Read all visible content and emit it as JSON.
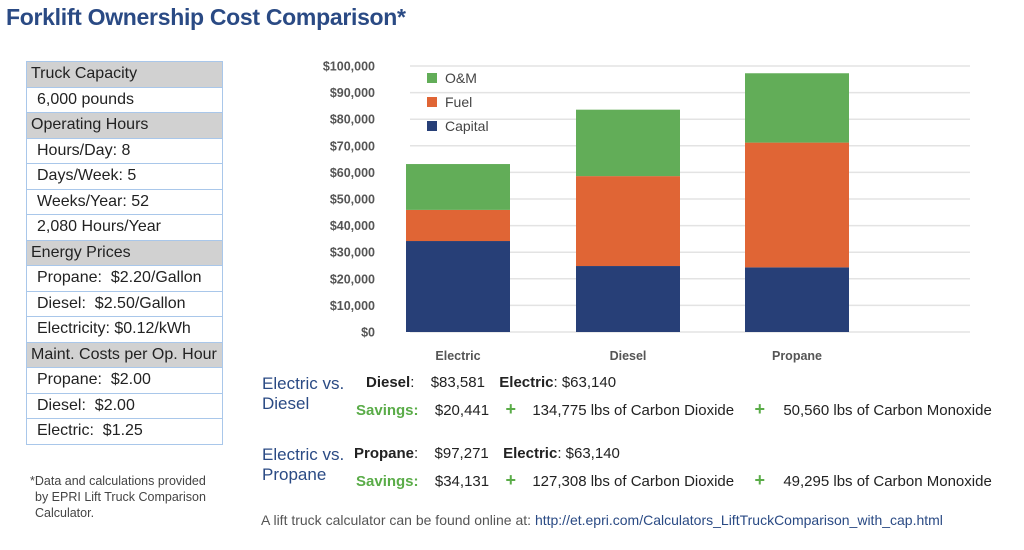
{
  "title": "Forklift Ownership Cost Comparison*",
  "specs": [
    {
      "type": "header",
      "text": "Truck Capacity"
    },
    {
      "type": "value",
      "text": "6,000 pounds"
    },
    {
      "type": "header",
      "text": "Operating Hours"
    },
    {
      "type": "value",
      "text": "Hours/Day: 8"
    },
    {
      "type": "value",
      "text": "Days/Week: 5"
    },
    {
      "type": "value",
      "text": "Weeks/Year: 52"
    },
    {
      "type": "value",
      "text": "2,080 Hours/Year"
    },
    {
      "type": "header",
      "text": "Energy Prices"
    },
    {
      "type": "value",
      "text": "Propane:  $2.20/Gallon"
    },
    {
      "type": "value",
      "text": "Diesel:  $2.50/Gallon"
    },
    {
      "type": "value",
      "text": "Electricity: $0.12/kWh"
    },
    {
      "type": "header",
      "text": "Maint. Costs per Op. Hour"
    },
    {
      "type": "value",
      "text": "Propane:  $2.00"
    },
    {
      "type": "value",
      "text": "Diesel:  $2.00"
    },
    {
      "type": "value",
      "text": "Electric:  $1.25"
    }
  ],
  "footnote": {
    "line1": "*Data and calculations provided",
    "line2": "by EPRI Lift Truck Comparison",
    "line3": "Calculator."
  },
  "chart_data": {
    "type": "bar",
    "stacked": true,
    "title": "",
    "xlabel": "",
    "ylabel": "",
    "categories": [
      "Electric",
      "Diesel",
      "Propane"
    ],
    "series": [
      {
        "name": "Capital",
        "color": "#273f77",
        "values": [
          34200,
          24800,
          24300
        ]
      },
      {
        "name": "Fuel",
        "color": "#e06535",
        "values": [
          11700,
          33800,
          46900
        ]
      },
      {
        "name": "O&M",
        "color": "#62ad58",
        "values": [
          17240,
          24981,
          26071
        ]
      }
    ],
    "totals": [
      63140,
      83581,
      97271
    ],
    "ylim": [
      0,
      100000
    ],
    "yticks": [
      0,
      10000,
      20000,
      30000,
      40000,
      50000,
      60000,
      70000,
      80000,
      90000,
      100000
    ],
    "ytick_labels": [
      "$0",
      "$10,000",
      "$20,000",
      "$30,000",
      "$40,000",
      "$50,000",
      "$60,000",
      "$70,000",
      "$80,000",
      "$90,000",
      "$100,000"
    ],
    "legend": {
      "placement": "top-left",
      "entries": [
        "O&M",
        "Fuel",
        "Capital"
      ]
    },
    "grid": true
  },
  "comparisons": [
    {
      "label_line1": "Electric vs.",
      "label_line2": "Diesel",
      "other_name": "Diesel",
      "other_cost": "$83,581",
      "electric_name": "Electric",
      "electric_cost": "$63,140",
      "savings_label": "Savings",
      "savings": "$20,441",
      "co2": "134,775 lbs of Carbon Dioxide",
      "co": "50,560 lbs of Carbon Monoxide"
    },
    {
      "label_line1": "Electric vs.",
      "label_line2": "Propane",
      "other_name": "Propane",
      "other_cost": "$97,271",
      "electric_name": "Electric",
      "electric_cost": "$63,140",
      "savings_label": "Savings",
      "savings": "$34,131",
      "co2": "127,308 lbs of Carbon Dioxide",
      "co": "49,295 lbs of Carbon Monoxide"
    }
  ],
  "plus_glyph": "+",
  "bottom": {
    "text": "A lift truck calculator can be found online at: ",
    "link": "http://et.epri.com/Calculators_LiftTruckComparison_with_cap.html"
  }
}
